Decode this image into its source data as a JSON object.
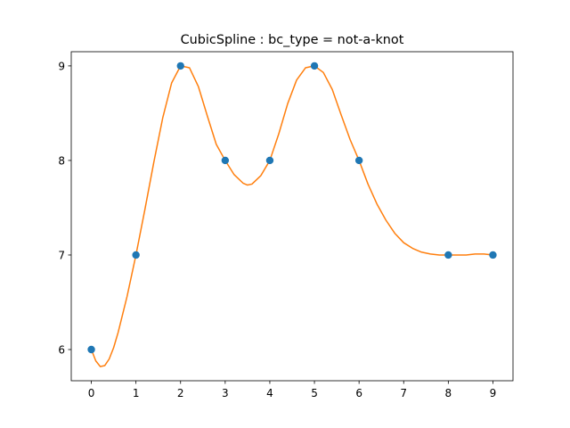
{
  "chart_data": {
    "type": "scatter",
    "title": "CubicSpline : bc_type = not-a-knot",
    "xlabel": "",
    "ylabel": "",
    "xlim": [
      -0.45,
      9.45
    ],
    "ylim": [
      5.67,
      9.15
    ],
    "xticks": [
      0,
      1,
      2,
      3,
      4,
      5,
      6,
      7,
      8,
      9
    ],
    "yticks": [
      6,
      7,
      8,
      9
    ],
    "grid": false,
    "series": [
      {
        "kind": "points",
        "color": "#1f77b4",
        "x": [
          0,
          1,
          2,
          3,
          4,
          5,
          6,
          8,
          9
        ],
        "y": [
          6,
          7,
          9,
          8,
          8,
          9,
          8,
          7,
          7
        ]
      },
      {
        "kind": "line",
        "color": "#ff7f0e",
        "x": [
          0,
          0.1,
          0.2,
          0.3,
          0.4,
          0.5,
          0.6,
          0.8,
          1.0,
          1.2,
          1.4,
          1.6,
          1.8,
          2.0,
          2.2,
          2.4,
          2.6,
          2.8,
          3.0,
          3.2,
          3.4,
          3.5,
          3.6,
          3.8,
          4.0,
          4.2,
          4.4,
          4.6,
          4.8,
          5.0,
          5.2,
          5.4,
          5.6,
          5.8,
          6.0,
          6.2,
          6.4,
          6.6,
          6.8,
          7.0,
          7.2,
          7.4,
          7.6,
          7.8,
          8.0,
          8.2,
          8.4,
          8.6,
          8.8,
          9.0
        ],
        "y": [
          6.0,
          5.88,
          5.82,
          5.83,
          5.9,
          6.02,
          6.18,
          6.56,
          7.0,
          7.48,
          7.98,
          8.45,
          8.82,
          9.0,
          8.98,
          8.78,
          8.47,
          8.17,
          8.0,
          7.85,
          7.76,
          7.74,
          7.75,
          7.84,
          8.0,
          8.28,
          8.6,
          8.85,
          8.98,
          9.0,
          8.93,
          8.75,
          8.48,
          8.22,
          8.0,
          7.75,
          7.54,
          7.37,
          7.23,
          7.13,
          7.07,
          7.03,
          7.01,
          7.0,
          7.0,
          7.0,
          7.0,
          7.01,
          7.01,
          7.0
        ]
      }
    ]
  }
}
